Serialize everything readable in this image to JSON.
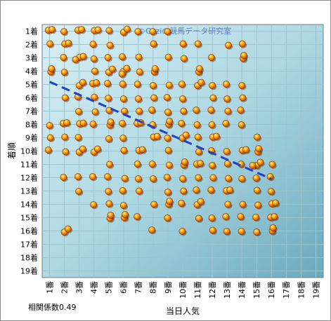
{
  "chart_data": {
    "type": "scatter",
    "xlabel": "当日人気",
    "ylabel": "着順",
    "x_tick_labels": [
      "1番",
      "2番",
      "3番",
      "4番",
      "5番",
      "6番",
      "7番",
      "8番",
      "9番",
      "10番",
      "11番",
      "12番",
      "13番",
      "14番",
      "15番",
      "16番",
      "17番",
      "18番",
      "19番"
    ],
    "y_tick_labels": [
      "1着",
      "2着",
      "3着",
      "4着",
      "5着",
      "6着",
      "7着",
      "8着",
      "9着",
      "10着",
      "11着",
      "12着",
      "13着",
      "14着",
      "15着",
      "16着",
      "17着",
      "18着",
      "19着"
    ],
    "xlim": [
      0.5,
      19.5
    ],
    "ylim": [
      0.5,
      19.5
    ],
    "y_inverted": true,
    "grid": true,
    "annotation": "相関係数0.49",
    "watermark": "©Caziの競馬データ研究室",
    "trendline": {
      "x": [
        1,
        16
      ],
      "y": [
        4.8,
        12.1
      ],
      "color": "#1f3fd0",
      "style": "dashed"
    },
    "points": [
      [
        1,
        1
      ],
      [
        1,
        1
      ],
      [
        1,
        2
      ],
      [
        1,
        4
      ],
      [
        1,
        4
      ],
      [
        1,
        8
      ],
      [
        1,
        9
      ],
      [
        1,
        10
      ],
      [
        2,
        1
      ],
      [
        2,
        2
      ],
      [
        2,
        2
      ],
      [
        2,
        3
      ],
      [
        2,
        4
      ],
      [
        2,
        6
      ],
      [
        2,
        8
      ],
      [
        2,
        8
      ],
      [
        2,
        9
      ],
      [
        2,
        10
      ],
      [
        2,
        12
      ],
      [
        2,
        16
      ],
      [
        2,
        16
      ],
      [
        3,
        1
      ],
      [
        3,
        1
      ],
      [
        3,
        3
      ],
      [
        3,
        3
      ],
      [
        3,
        3
      ],
      [
        3,
        5
      ],
      [
        3,
        5
      ],
      [
        3,
        6
      ],
      [
        3,
        7
      ],
      [
        3,
        8
      ],
      [
        3,
        8
      ],
      [
        3,
        9
      ],
      [
        3,
        10
      ],
      [
        3,
        10
      ],
      [
        3,
        12
      ],
      [
        3,
        13
      ],
      [
        4,
        1
      ],
      [
        4,
        1
      ],
      [
        4,
        2
      ],
      [
        4,
        3
      ],
      [
        4,
        4
      ],
      [
        4,
        5
      ],
      [
        4,
        5
      ],
      [
        4,
        6
      ],
      [
        4,
        7
      ],
      [
        4,
        8
      ],
      [
        4,
        10
      ],
      [
        4,
        10
      ],
      [
        4,
        12
      ],
      [
        4,
        14
      ],
      [
        5,
        1
      ],
      [
        5,
        2
      ],
      [
        5,
        3
      ],
      [
        5,
        4
      ],
      [
        5,
        4
      ],
      [
        5,
        5
      ],
      [
        5,
        6
      ],
      [
        5,
        7
      ],
      [
        5,
        8
      ],
      [
        5,
        8
      ],
      [
        5,
        9
      ],
      [
        5,
        11
      ],
      [
        5,
        12
      ],
      [
        5,
        13
      ],
      [
        5,
        14
      ],
      [
        5,
        15
      ],
      [
        5,
        15
      ],
      [
        6,
        1
      ],
      [
        6,
        1
      ],
      [
        6,
        3
      ],
      [
        6,
        4
      ],
      [
        6,
        4
      ],
      [
        6,
        4
      ],
      [
        6,
        5
      ],
      [
        6,
        6
      ],
      [
        6,
        7
      ],
      [
        6,
        8
      ],
      [
        6,
        9
      ],
      [
        6,
        10
      ],
      [
        6,
        12
      ],
      [
        6,
        13
      ],
      [
        6,
        14
      ],
      [
        6,
        15
      ],
      [
        6,
        15
      ],
      [
        7,
        1
      ],
      [
        7,
        3
      ],
      [
        7,
        4
      ],
      [
        7,
        5
      ],
      [
        7,
        6
      ],
      [
        7,
        7
      ],
      [
        7,
        8
      ],
      [
        7,
        8
      ],
      [
        7,
        10
      ],
      [
        7,
        10
      ],
      [
        7,
        11
      ],
      [
        7,
        12
      ],
      [
        7,
        13
      ],
      [
        7,
        15
      ],
      [
        8,
        1
      ],
      [
        8,
        2
      ],
      [
        8,
        4
      ],
      [
        8,
        4
      ],
      [
        8,
        5
      ],
      [
        8,
        6
      ],
      [
        8,
        7
      ],
      [
        8,
        8
      ],
      [
        8,
        9
      ],
      [
        8,
        9
      ],
      [
        8,
        11
      ],
      [
        8,
        12
      ],
      [
        8,
        14
      ],
      [
        8,
        16
      ],
      [
        9,
        1
      ],
      [
        9,
        3
      ],
      [
        9,
        5
      ],
      [
        9,
        6
      ],
      [
        9,
        7
      ],
      [
        9,
        8
      ],
      [
        9,
        8
      ],
      [
        9,
        9
      ],
      [
        9,
        10
      ],
      [
        9,
        11
      ],
      [
        9,
        12
      ],
      [
        9,
        13
      ],
      [
        9,
        14
      ],
      [
        9,
        14
      ],
      [
        9,
        15
      ],
      [
        10,
        2
      ],
      [
        10,
        3
      ],
      [
        10,
        5
      ],
      [
        10,
        6
      ],
      [
        10,
        7
      ],
      [
        10,
        8
      ],
      [
        10,
        9
      ],
      [
        10,
        9
      ],
      [
        10,
        11
      ],
      [
        10,
        11
      ],
      [
        10,
        12
      ],
      [
        10,
        13
      ],
      [
        10,
        14
      ],
      [
        10,
        16
      ],
      [
        11,
        2
      ],
      [
        11,
        4
      ],
      [
        11,
        4
      ],
      [
        11,
        5
      ],
      [
        11,
        5
      ],
      [
        11,
        7
      ],
      [
        11,
        8
      ],
      [
        11,
        9
      ],
      [
        11,
        10
      ],
      [
        11,
        11
      ],
      [
        11,
        11
      ],
      [
        11,
        12
      ],
      [
        11,
        13
      ],
      [
        11,
        14
      ],
      [
        11,
        14
      ],
      [
        11,
        15
      ],
      [
        12,
        3
      ],
      [
        12,
        5
      ],
      [
        12,
        6
      ],
      [
        12,
        7
      ],
      [
        12,
        8
      ],
      [
        12,
        9
      ],
      [
        12,
        9
      ],
      [
        12,
        10
      ],
      [
        12,
        11
      ],
      [
        12,
        12
      ],
      [
        12,
        13
      ],
      [
        12,
        15
      ],
      [
        12,
        16
      ],
      [
        13,
        2
      ],
      [
        13,
        5
      ],
      [
        13,
        6
      ],
      [
        13,
        7
      ],
      [
        13,
        8
      ],
      [
        13,
        10
      ],
      [
        13,
        11
      ],
      [
        13,
        12
      ],
      [
        13,
        13
      ],
      [
        13,
        13
      ],
      [
        13,
        14
      ],
      [
        13,
        15
      ],
      [
        13,
        16
      ],
      [
        14,
        2
      ],
      [
        14,
        3
      ],
      [
        14,
        3
      ],
      [
        14,
        5
      ],
      [
        14,
        6
      ],
      [
        14,
        7
      ],
      [
        14,
        8
      ],
      [
        14,
        10
      ],
      [
        14,
        10
      ],
      [
        14,
        11
      ],
      [
        14,
        12
      ],
      [
        14,
        14
      ],
      [
        14,
        15
      ],
      [
        14,
        16
      ],
      [
        15,
        9
      ],
      [
        15,
        10
      ],
      [
        15,
        10
      ],
      [
        15,
        11
      ],
      [
        15,
        11
      ],
      [
        15,
        11
      ],
      [
        15,
        12
      ],
      [
        15,
        13
      ],
      [
        15,
        14
      ],
      [
        15,
        15
      ],
      [
        15,
        16
      ],
      [
        16,
        11
      ],
      [
        16,
        12
      ],
      [
        16,
        13
      ],
      [
        16,
        14
      ],
      [
        16,
        14
      ],
      [
        16,
        15
      ],
      [
        16,
        15
      ],
      [
        16,
        16
      ],
      [
        16,
        16
      ]
    ]
  }
}
